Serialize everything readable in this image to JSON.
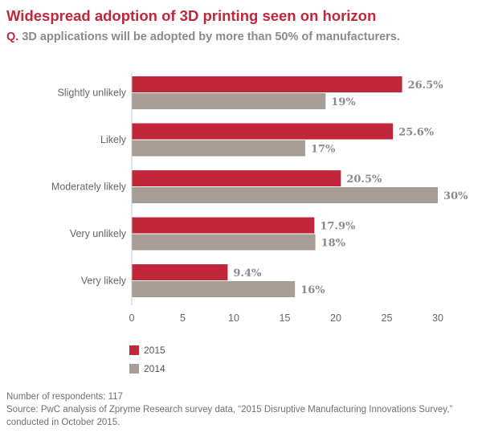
{
  "header": {
    "title": "Widespread adoption of 3D printing seen on horizon",
    "question_prefix": "Q.",
    "question": "3D applications will be adopted by more than 50% of manufacturers."
  },
  "chart_data": {
    "type": "bar",
    "orientation": "horizontal",
    "title": "Widespread adoption of 3D printing seen on horizon",
    "subtitle": "Q. 3D applications will be adopted by more than 50% of manufacturers.",
    "categories": [
      "Slightly unlikely",
      "Likely",
      "Moderately likely",
      "Very unlikely",
      "Very likely"
    ],
    "series": [
      {
        "name": "2015",
        "color": "#c0273a",
        "values": [
          26.5,
          25.6,
          20.5,
          17.9,
          9.4
        ],
        "labels": [
          "26.5%",
          "25.6%",
          "20.5%",
          "17.9%",
          "9.4%"
        ]
      },
      {
        "name": "2014",
        "color": "#a89d94",
        "values": [
          19,
          17,
          30,
          18,
          16
        ],
        "labels": [
          "19%",
          "17%",
          "30%",
          "18%",
          "16%"
        ]
      }
    ],
    "xlim": [
      0,
      30
    ],
    "xticks": [
      "0",
      "5",
      "10",
      "15",
      "20",
      "25",
      "30"
    ],
    "xlabel": "",
    "ylabel": "",
    "grid": false,
    "legend_position": "bottom-left"
  },
  "footer": {
    "respondents": "Number of respondents: 117",
    "source": "Source: PwC analysis of Zpryme Research survey data, “2015 Disruptive Manufacturing Innovations Survey,” conducted in October 2015."
  }
}
